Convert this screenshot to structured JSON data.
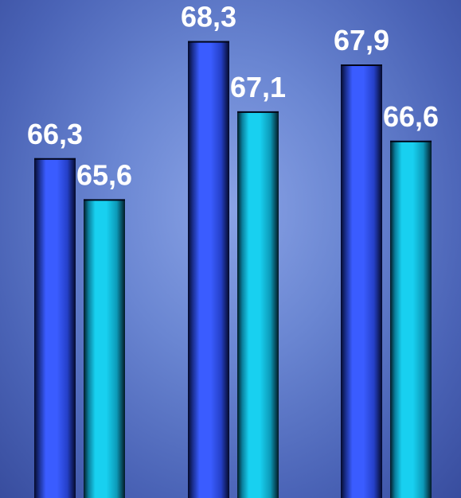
{
  "chart_data": {
    "type": "bar",
    "title": "",
    "xlabel": "",
    "ylabel": "",
    "categories": [
      "",
      "",
      ""
    ],
    "series": [
      {
        "values": [
          66.3,
          68.3,
          67.9
        ],
        "labels": [
          "66,3",
          "68,3",
          "67,9"
        ],
        "color": "#3a5cff"
      },
      {
        "values": [
          65.6,
          67.1,
          66.6
        ],
        "labels": [
          "65,6",
          "67,1",
          "66,6"
        ],
        "color": "#18c8ea"
      }
    ],
    "ylim": [
      60.5,
      69
    ],
    "grid": false,
    "legend": "none",
    "value_labels": true
  }
}
